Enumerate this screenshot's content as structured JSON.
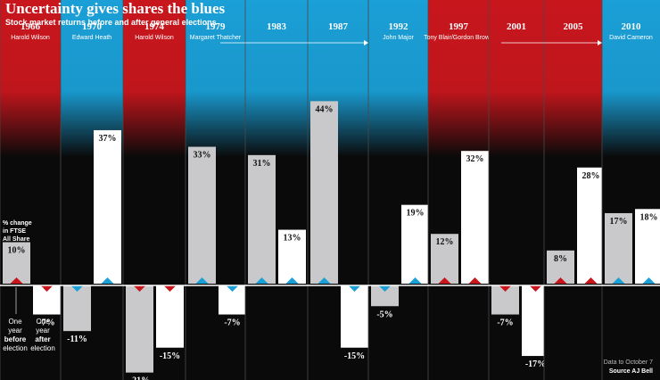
{
  "chart_data": {
    "type": "bar",
    "title": "Uncertainty gives shares the blues",
    "subtitle": "Stock market returns before and after general elections",
    "ylabel_lines": [
      "% change",
      "in FTSE",
      "All Share"
    ],
    "legend_before": [
      "One",
      "year",
      "before",
      "election"
    ],
    "legend_after": [
      "One",
      "year",
      "after",
      "election"
    ],
    "footnote": "Data to October 7",
    "source": "Source AJ Bell",
    "series": [
      {
        "values": [
          10,
          -11,
          -21,
          33,
          31,
          44,
          -5,
          12,
          -7,
          8,
          17
        ]
      },
      {
        "values": [
          -7,
          37,
          -15,
          -7,
          13,
          -15,
          19,
          32,
          -17,
          28,
          18
        ]
      }
    ],
    "elections": [
      {
        "year": "1966",
        "leader": "Harold Wilson",
        "party": "Labour",
        "before": 10,
        "after": -7
      },
      {
        "year": "1970",
        "leader": "Edward Heath",
        "party": "Conservative",
        "before": -11,
        "after": 37
      },
      {
        "year": "1974",
        "leader": "Harold Wilson",
        "party": "Labour",
        "before": -21,
        "after": -15
      },
      {
        "year": "1979",
        "leader": "Margaret Thatcher",
        "party": "Conservative",
        "before": 33,
        "after": -7
      },
      {
        "year": "1983",
        "leader": "",
        "party": "Conservative",
        "before": 31,
        "after": 13
      },
      {
        "year": "1987",
        "leader": "",
        "party": "Conservative",
        "before": 44,
        "after": -15
      },
      {
        "year": "1992",
        "leader": "John Major",
        "party": "Conservative",
        "before": -5,
        "after": 19
      },
      {
        "year": "1997",
        "leader": "Tony Blair/Gordon Brown",
        "party": "Labour",
        "before": 12,
        "after": 32
      },
      {
        "year": "2001",
        "leader": "",
        "party": "Labour",
        "before": -7,
        "after": -17
      },
      {
        "year": "2005",
        "leader": "",
        "party": "Labour",
        "before": 8,
        "after": 28
      },
      {
        "year": "2010",
        "leader": "David Cameron",
        "party": "Conservative",
        "before": 17,
        "after": 18
      }
    ],
    "value_suffix": "%",
    "colors": {
      "labour": "#c8161d",
      "conservative": "#1a9fd6",
      "before_bar": "#c9c9cc",
      "after_bar": "#ffffff",
      "background": "#0a0a0a"
    }
  }
}
